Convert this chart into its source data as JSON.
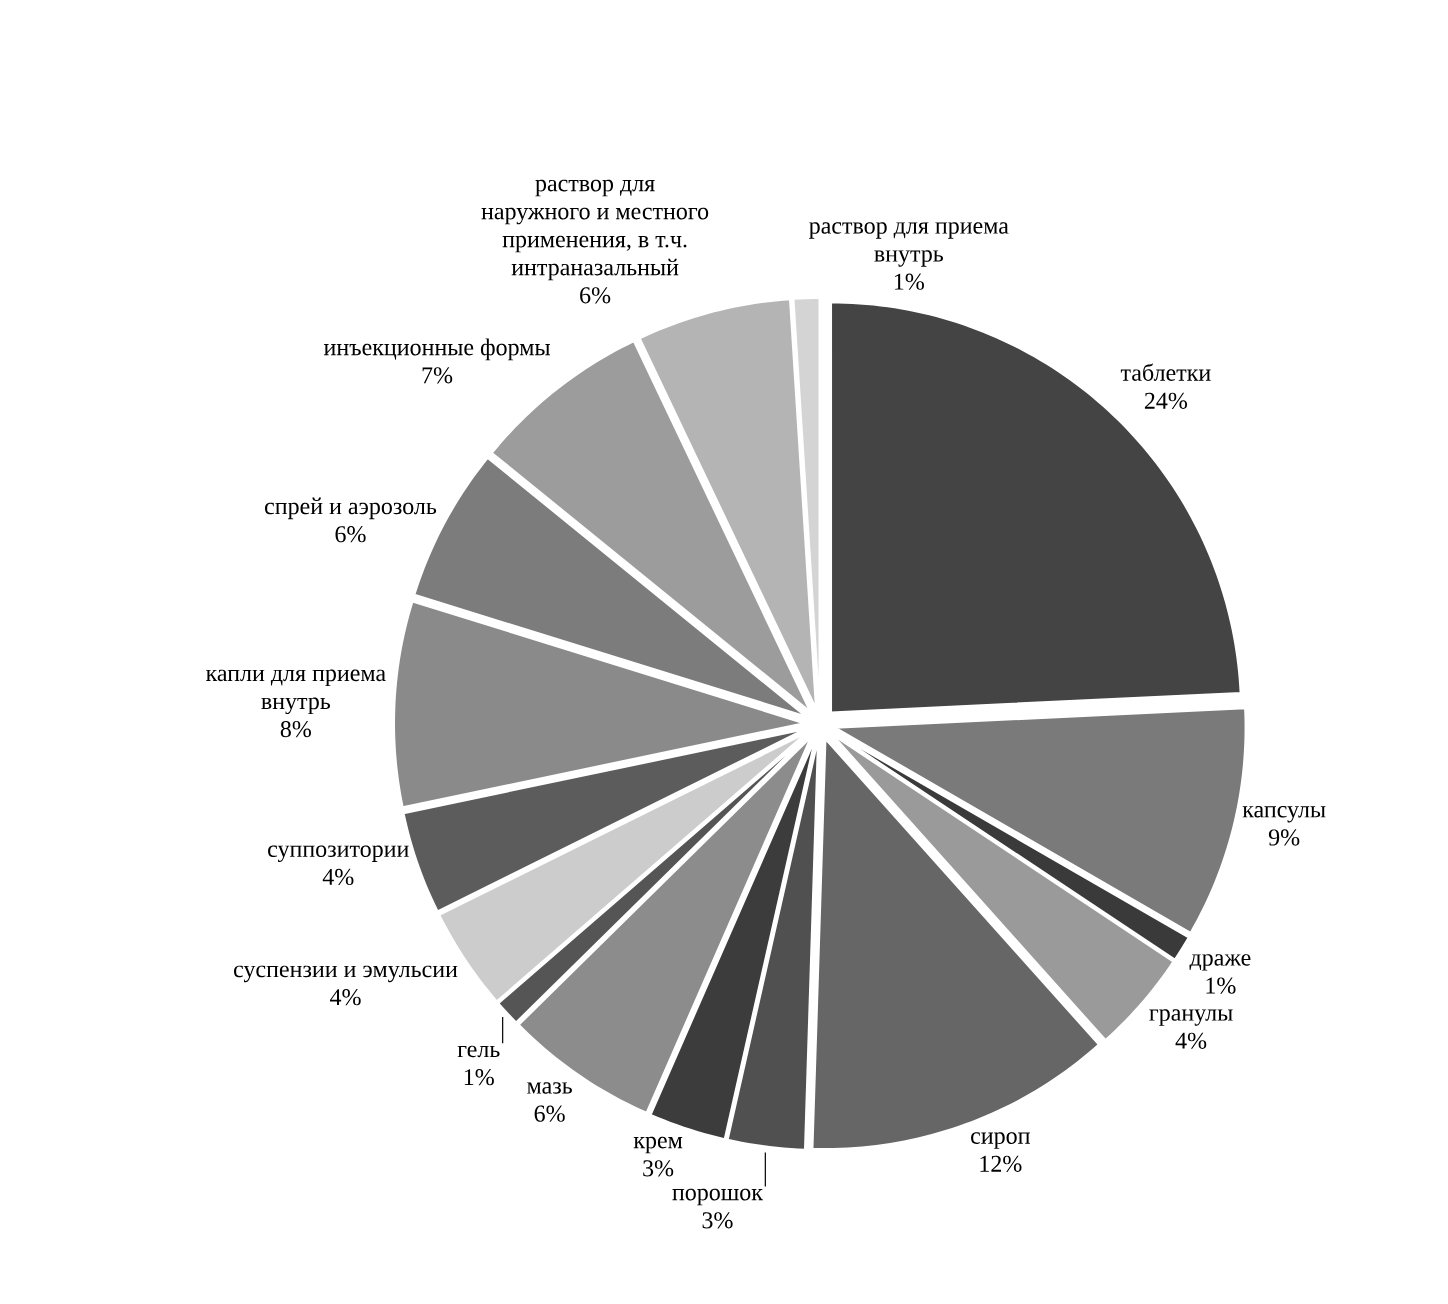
{
  "chart_data": {
    "type": "pie",
    "value_labels": [
      "24%",
      "9%",
      "1%",
      "4%",
      "12%",
      "3%",
      "3%",
      "6%",
      "1%",
      "4%",
      "4%",
      "8%",
      "6%",
      "7%",
      "6%",
      "1%"
    ],
    "categories": [
      "таблетки",
      "капсулы",
      "драже",
      "гранулы",
      "сироп",
      "порошок",
      "крем",
      "мазь",
      "гель",
      "суспензии и эмульсии",
      "суппозитории",
      "капли для приема внутрь",
      "спрей и аэрозоль",
      "инъекционные формы",
      "раствор для наружного и местного применения, в т.ч. интраназальный",
      "раствор для приема внутрь"
    ],
    "values": [
      24,
      9,
      1,
      4,
      12,
      3,
      3,
      6,
      1,
      4,
      4,
      8,
      6,
      7,
      6,
      1
    ],
    "colors": [
      "#444444",
      "#7a7a7a",
      "#3a3a3a",
      "#9a9a9a",
      "#666666",
      "#505050",
      "#3c3c3c",
      "#8c8c8c",
      "#555555",
      "#cccccc",
      "#5c5c5c",
      "#8a8a8a",
      "#7c7c7c",
      "#9c9c9c",
      "#b4b4b4",
      "#d4d4d4"
    ]
  }
}
